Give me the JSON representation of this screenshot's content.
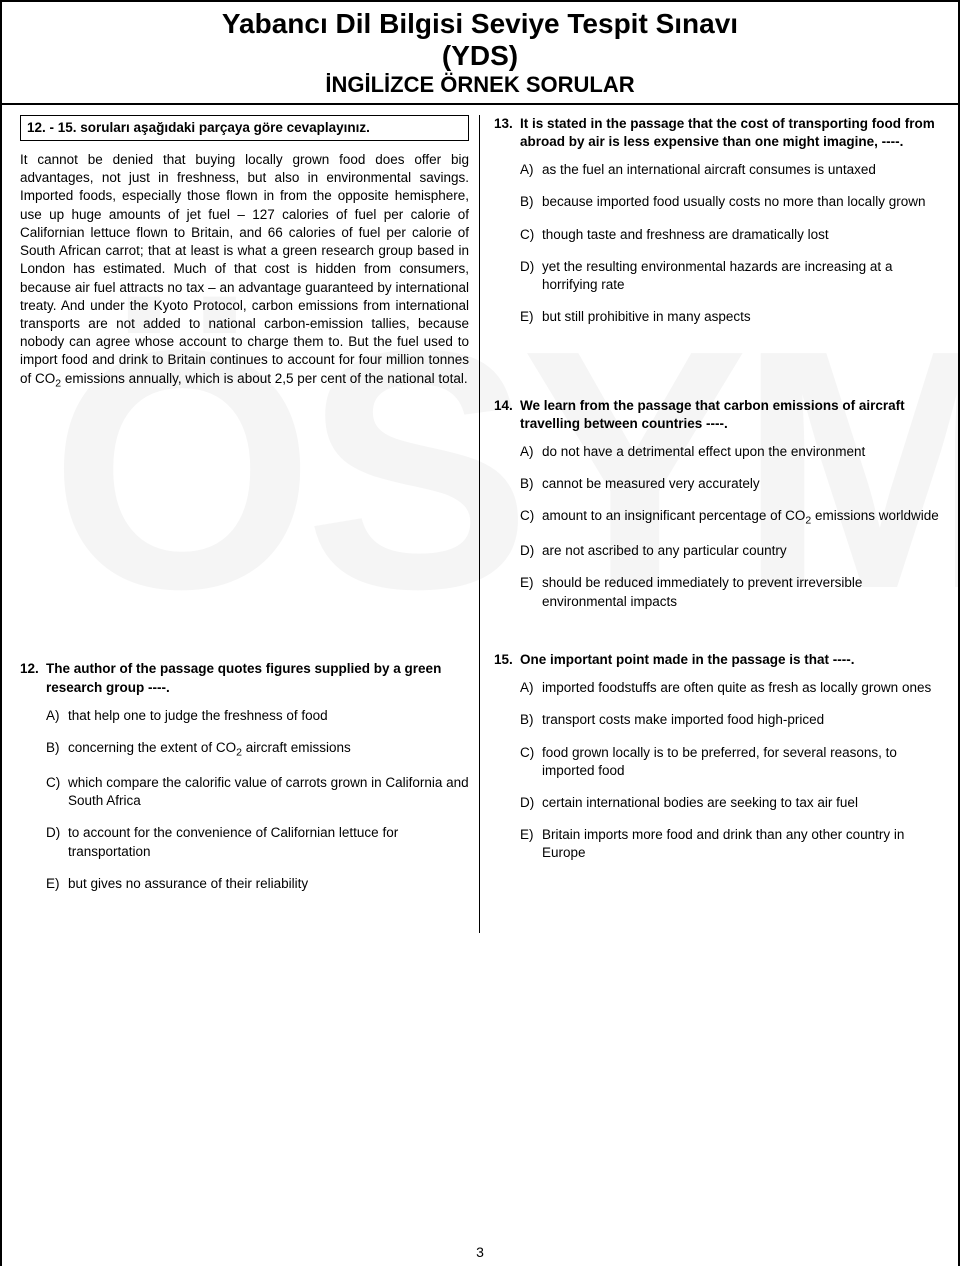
{
  "watermark": "ÖSYM",
  "header": {
    "line1": "Yabancı Dil Bilgisi Seviye Tespit Sınavı",
    "line2": "(YDS)",
    "line3": "İNGİLİZCE ÖRNEK SORULAR"
  },
  "instruction": "12. - 15. soruları aşağıdaki parçaya göre cevaplayınız.",
  "passage_part1": "It cannot be denied that buying locally grown food does offer big advantages, not just in freshness, but also in environmental savings. Imported foods, especially those flown in from the opposite hemisphere, use up huge amounts of jet fuel – 127 calories of fuel per calorie of Californian lettuce flown to Britain, and 66 calories of fuel per calorie of South African carrot; that at least is what a green research group based in London has estimated. Much of that cost is hidden from consumers, because air fuel attracts no tax – an advantage guaranteed by international treaty. And under the Kyoto Protocol, carbon emissions from international transports are not added to national carbon-emission tallies, because nobody can agree whose account to charge them to. But the fuel used to import food and drink to Britain continues to account for four million tonnes of CO",
  "passage_part2": " emissions annually, which is about 2,5 per cent of the national total.",
  "q12": {
    "num": "12.",
    "stem": "The author of the passage quotes figures supplied by a green research group ----.",
    "A": "that help one to judge the freshness of food",
    "B_pre": "concerning the extent of CO",
    "B_post": " aircraft emissions",
    "C": "which compare the calorific value of carrots grown in California and South Africa",
    "D": "to account for the convenience of Californian lettuce for transportation",
    "E": "but gives no assurance of their reliability"
  },
  "q13": {
    "num": "13.",
    "stem": "It is stated in the passage that the cost of transporting food from abroad by air is less expensive than one might imagine, ----.",
    "A": "as the fuel an international aircraft consumes is untaxed",
    "B": "because imported food usually costs no more than locally grown",
    "C": "though taste and freshness are dramatically lost",
    "D": "yet the resulting environmental hazards are increasing at a horrifying rate",
    "E": "but still prohibitive in many aspects"
  },
  "q14": {
    "num": "14.",
    "stem": "We learn from the passage that carbon emissions of aircraft travelling between countries ----.",
    "A": "do not have a detrimental effect upon the environment",
    "B": "cannot be measured very accurately",
    "C_pre": "amount to an insignificant percentage of CO",
    "C_post": " emissions worldwide",
    "D": "are not ascribed to any particular country",
    "E": "should be reduced immediately to prevent irreversible environmental impacts"
  },
  "q15": {
    "num": "15.",
    "stem": "One important point made in the passage is that ----.",
    "A": "imported foodstuffs are often quite as fresh as locally grown ones",
    "B": "transport costs make imported food high-priced",
    "C": "food grown locally is to be preferred, for several reasons, to imported food",
    "D": "certain international bodies are seeking to tax air fuel",
    "E": "Britain imports more food and drink than any other country in Europe"
  },
  "labels": {
    "A": "A)",
    "B": "B)",
    "C": "C)",
    "D": "D)",
    "E": "E)",
    "sub2": "2"
  },
  "pagenum": "3"
}
